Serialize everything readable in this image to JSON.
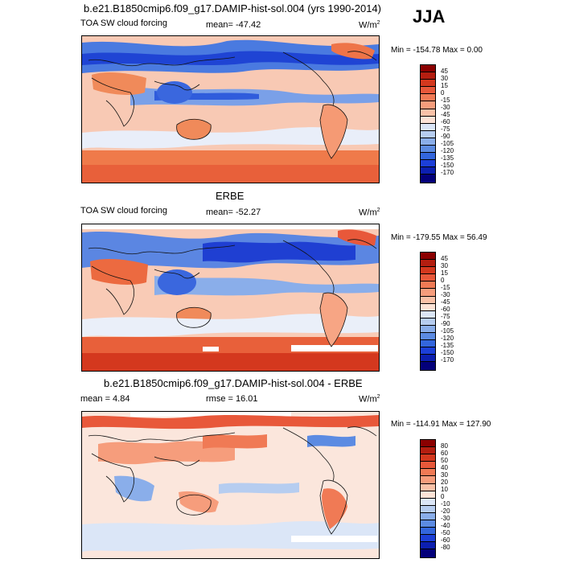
{
  "season": "JJA",
  "panels": [
    {
      "title": "b.e21.B1850cmip6.f09_g17.DAMIP-hist-sol.004 (yrs 1990-2014)",
      "left_label": "TOA SW cloud forcing",
      "center_label": "mean= -47.42",
      "units": "W/m",
      "units_sup": "2",
      "minmax": "Min = -154.78 Max =   0.00",
      "colorbar_labels": [
        "45",
        "30",
        "15",
        "0",
        "-15",
        "-30",
        "-45",
        "-60",
        "-75",
        "-90",
        "-105",
        "-120",
        "-135",
        "-150",
        "-170"
      ]
    },
    {
      "title": "ERBE",
      "left_label": "TOA SW cloud forcing",
      "center_label": "mean= -52.27",
      "units": "W/m",
      "units_sup": "2",
      "minmax": "Min = -179.55 Max =  56.49",
      "colorbar_labels": [
        "45",
        "30",
        "15",
        "0",
        "-15",
        "-30",
        "-45",
        "-60",
        "-75",
        "-90",
        "-105",
        "-120",
        "-135",
        "-150",
        "-170"
      ]
    },
    {
      "title": "b.e21.B1850cmip6.f09_g17.DAMIP-hist-sol.004 - ERBE",
      "left_label": "mean =   4.84",
      "center_label": "rmse =  16.01",
      "units": "W/m",
      "units_sup": "2",
      "minmax": "Min = -114.91 Max = 127.90",
      "colorbar_labels": [
        "80",
        "60",
        "50",
        "40",
        "30",
        "20",
        "10",
        "0",
        "-10",
        "-20",
        "-30",
        "-40",
        "-50",
        "-60",
        "-80"
      ]
    }
  ],
  "colors": {
    "abs_scale": [
      "#8b0000",
      "#b41e10",
      "#d4381e",
      "#e8583a",
      "#f07a55",
      "#f69d7c",
      "#fac2a8",
      "#fde3d6",
      "#dbe6f7",
      "#b6cdf0",
      "#8aaeea",
      "#5c8be2",
      "#3366dd",
      "#1c3fd8",
      "#0c1fb0",
      "#03007a"
    ],
    "diff_scale": [
      "#8b0000",
      "#b41e10",
      "#d4381e",
      "#e8583a",
      "#f07a55",
      "#f69d7c",
      "#fac2a8",
      "#fde3d6",
      "#dbe6f7",
      "#b6cdf0",
      "#8aaeea",
      "#5c8be2",
      "#3366dd",
      "#1c3fd8",
      "#0c1fb0",
      "#03007a"
    ]
  }
}
